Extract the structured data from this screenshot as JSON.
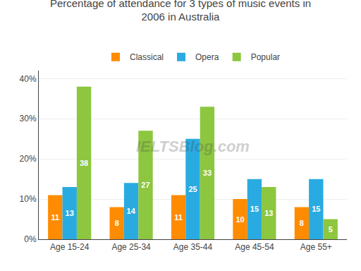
{
  "chart_data": {
    "type": "bar",
    "title": "Percentage of attendance for 3 types of music events in\n2006 in Australia",
    "categories": [
      "Age 15-24",
      "Age 25-34",
      "Age 35-44",
      "Age 45-54",
      "Age 55+"
    ],
    "series": [
      {
        "name": "Classical",
        "color": "#FF8C00",
        "values": [
          11,
          8,
          11,
          10,
          8
        ]
      },
      {
        "name": "Opera",
        "color": "#29ABE2",
        "values": [
          13,
          14,
          25,
          15,
          15
        ]
      },
      {
        "name": "Popular",
        "color": "#8DC63F",
        "values": [
          38,
          27,
          33,
          13,
          5
        ]
      }
    ],
    "ylim": [
      0,
      42
    ],
    "yticks": [
      {
        "value": 0,
        "label": "0%"
      },
      {
        "value": 10,
        "label": "10%"
      },
      {
        "value": 20,
        "label": "20%"
      },
      {
        "value": 30,
        "label": "30%"
      },
      {
        "value": 40,
        "label": "40%"
      }
    ],
    "grid": true,
    "legend": "top",
    "data_labels": true,
    "annotations": [
      "IELTSBlog.com"
    ]
  }
}
